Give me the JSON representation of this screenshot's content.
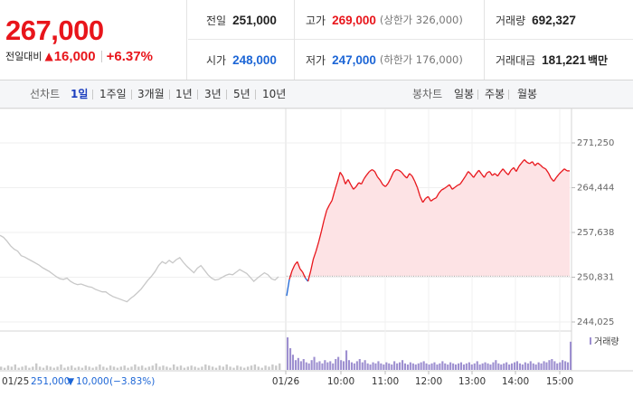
{
  "quote": {
    "price": "267,000",
    "change_label": "전일대비",
    "change_arrow": "▲",
    "change_amount": "16,000",
    "change_pct": "+6.37%",
    "prev_close": {
      "label": "전일",
      "value": "251,000"
    },
    "open": {
      "label": "시가",
      "value": "248,000"
    },
    "high": {
      "label": "고가",
      "value": "269,000",
      "sub": "(상한가 326,000)"
    },
    "low": {
      "label": "저가",
      "value": "247,000",
      "sub": "(하한가 176,000)"
    },
    "volume": {
      "label": "거래량",
      "value": "692,327"
    },
    "amount": {
      "label": "거래대금",
      "value": "181,221",
      "unit": "백만"
    }
  },
  "toolbar": {
    "line_label": "선차트",
    "line_periods": [
      "1일",
      "1주일",
      "3개월",
      "1년",
      "3년",
      "5년",
      "10년"
    ],
    "active_period": "1일",
    "candle_label": "봉차트",
    "candle_periods": [
      "일봉",
      "주봉",
      "월봉"
    ]
  },
  "colors": {
    "up": "#e8151b",
    "down": "#1d66d6",
    "prev_day_line": "#c8c8c8",
    "area_fill": "#fde3e5",
    "volume_today": "#9d8fd0",
    "volume_prev": "#c9c9c9"
  },
  "chart_data": {
    "type": "line",
    "y_ticks": [
      "271,250",
      "264,444",
      "257,638",
      "250,831",
      "244,025"
    ],
    "ylim": [
      244025,
      271250
    ],
    "baseline": 251000,
    "x_ticks_prev": [
      "01/25"
    ],
    "x_ticks_today": [
      "01/26",
      "10:00",
      "11:00",
      "12:00",
      "13:00",
      "14:00",
      "15:00"
    ],
    "prev_day": {
      "date": "01/25",
      "series": [
        257200,
        256900,
        256300,
        255600,
        255100,
        254800,
        254100,
        253900,
        253600,
        253300,
        253000,
        252700,
        252300,
        252000,
        251700,
        251300,
        250900,
        250600,
        250500,
        250700,
        250200,
        249900,
        249700,
        249800,
        249600,
        249400,
        249300,
        249000,
        248800,
        248600,
        248600,
        248200,
        247900,
        247700,
        247500,
        247300,
        247100,
        247600,
        248000,
        248500,
        249000,
        249700,
        250400,
        251000,
        251700,
        252600,
        253200,
        252900,
        253400,
        253000,
        253500,
        253800,
        253100,
        252500,
        252000,
        251500,
        252200,
        252600,
        251900,
        251200,
        250700,
        250400,
        250500,
        250800,
        251100,
        251300,
        251200,
        251600,
        252000,
        251700,
        251400,
        250800,
        250200,
        250700,
        251100,
        251500,
        251200,
        250600,
        250400,
        250900
      ]
    },
    "today": {
      "date": "01/26",
      "series": [
        248000,
        250500,
        251800,
        252700,
        253200,
        252100,
        251600,
        250700,
        250200,
        251800,
        253600,
        254800,
        256200,
        257800,
        259500,
        261000,
        261800,
        262500,
        264000,
        265300,
        266800,
        266200,
        265000,
        265700,
        264900,
        264200,
        264600,
        265200,
        265000,
        265800,
        266400,
        266900,
        267200,
        266900,
        266100,
        265600,
        264900,
        264600,
        265100,
        265900,
        266800,
        267200,
        267100,
        266800,
        266300,
        265900,
        266600,
        266200,
        265400,
        264400,
        263100,
        262200,
        262800,
        263100,
        262400,
        262700,
        262900,
        263600,
        264100,
        264300,
        264600,
        264900,
        264200,
        264500,
        264800,
        265000,
        265600,
        266200,
        266900,
        266500,
        266000,
        266600,
        267100,
        266500,
        266000,
        266700,
        266900,
        266300,
        266600,
        266200,
        266800,
        267300,
        266800,
        266400,
        267100,
        267500,
        266900,
        267700,
        268200,
        268700,
        268300,
        268100,
        268400,
        267800,
        268200,
        267900,
        267500,
        267300,
        266700,
        265900,
        265400,
        266000,
        266500,
        266900,
        267300,
        267000,
        267000
      ]
    },
    "volume": {
      "legend": "거래량",
      "prev_day": [
        3,
        2,
        4,
        3,
        5,
        2,
        3,
        4,
        2,
        3,
        6,
        3,
        2,
        4,
        3,
        2,
        3,
        5,
        2,
        3,
        4,
        2,
        3,
        2,
        4,
        3,
        2,
        3,
        5,
        3,
        2,
        4,
        3,
        2,
        3,
        4,
        2,
        3,
        5,
        3,
        4,
        2,
        3,
        4,
        6,
        3,
        4,
        3,
        2,
        5,
        3,
        4,
        2,
        3,
        4,
        3,
        2,
        3,
        5,
        4,
        3,
        2,
        4,
        3,
        5,
        3,
        2,
        4,
        3,
        2,
        3,
        4,
        5,
        3,
        2,
        4,
        3,
        5,
        4,
        6
      ],
      "today": [
        30,
        20,
        14,
        9,
        11,
        8,
        10,
        7,
        6,
        9,
        12,
        7,
        8,
        6,
        9,
        7,
        8,
        6,
        10,
        12,
        9,
        8,
        18,
        9,
        7,
        6,
        8,
        10,
        7,
        9,
        6,
        5,
        7,
        6,
        8,
        6,
        5,
        7,
        6,
        5,
        8,
        6,
        7,
        9,
        6,
        5,
        7,
        6,
        5,
        6,
        7,
        8,
        6,
        5,
        6,
        7,
        5,
        6,
        8,
        6,
        5,
        7,
        6,
        5,
        6,
        7,
        5,
        6,
        7,
        5,
        6,
        8,
        5,
        6,
        7,
        6,
        5,
        7,
        9,
        6,
        5,
        6,
        7,
        5,
        6,
        7,
        8,
        6,
        5,
        7,
        6,
        8,
        6,
        5,
        7,
        6,
        8,
        7,
        9,
        10,
        8,
        6,
        7,
        9,
        8,
        7,
        26
      ]
    },
    "footer": {
      "date": "01/25",
      "close": "251,000",
      "arrow": "▼",
      "change": "10,000",
      "pct": "(−3.83%)"
    }
  }
}
